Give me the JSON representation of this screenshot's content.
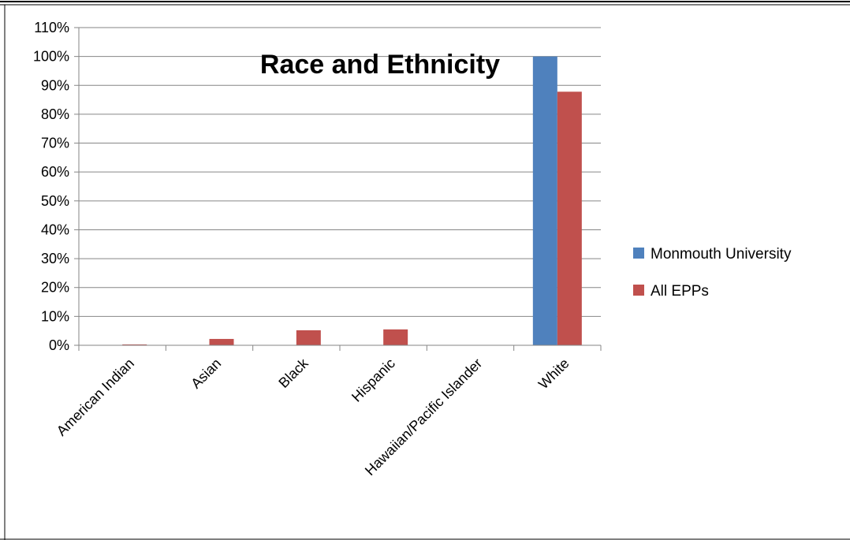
{
  "colors": {
    "series_1": "#4f81bd",
    "series_2": "#c0504d",
    "gridline": "#868686",
    "axis": "#868686",
    "frame": "#000000"
  },
  "chart_data": {
    "type": "bar",
    "title": "Race and Ethnicity",
    "xlabel": "",
    "ylabel": "",
    "categories": [
      "American Indian",
      "Asian",
      "Black",
      "Hispanic",
      "Hawaiian/Pacific Islander",
      "White"
    ],
    "series": [
      {
        "name": "Monmouth University",
        "values": [
          0,
          0,
          0,
          0,
          0,
          100
        ]
      },
      {
        "name": "All EPPs",
        "values": [
          0.3,
          2.2,
          5.2,
          5.5,
          0.1,
          87.8
        ]
      }
    ],
    "ylim": [
      0,
      110
    ],
    "yticks": [
      "0%",
      "10%",
      "20%",
      "30%",
      "40%",
      "50%",
      "60%",
      "70%",
      "80%",
      "90%",
      "100%",
      "110%"
    ],
    "grid": true,
    "legend_position": "right"
  }
}
